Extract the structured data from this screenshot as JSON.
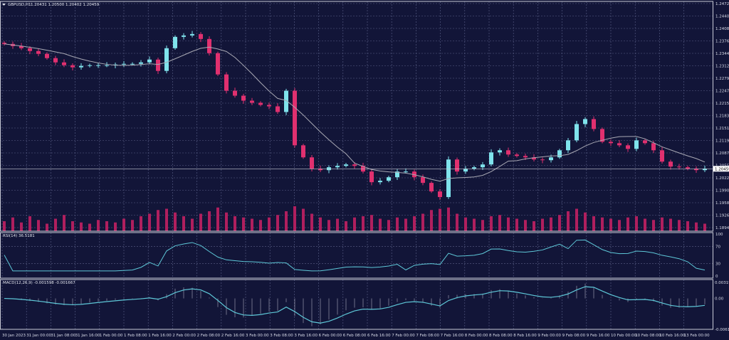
{
  "header": {
    "symbol": "GBPUSD,H1",
    "ohlc": "1.20431 1.20500 1.20402 1.20459"
  },
  "colors": {
    "background": "#121538",
    "grid": "#5b6088",
    "bull": "#7fe3ec",
    "bear": "#e0306f",
    "ma": "#a9a9b4",
    "volume": "#b01f5e",
    "indicator": "#5ec8d8",
    "panel_border": "#c8cad6"
  },
  "chart_data": [
    {
      "type": "candlestick",
      "title": "GBPUSD,H1",
      "price_axis_labels": [
        "1.24725",
        "1.24405",
        "1.24080",
        "1.23760",
        "1.23440",
        "1.23120",
        "1.22795",
        "1.22475",
        "1.22155",
        "1.21835",
        "1.21510",
        "1.21190",
        "1.20870",
        "1.20550",
        "1.20225",
        "1.19905",
        "1.19585",
        "1.19265",
        "1.18940"
      ],
      "ylim": [
        1.1894,
        1.24725
      ],
      "current_price": "1.20459",
      "x_tick_labels": [
        "30 Jan 2023",
        "31 Jan 00:00",
        "31 Jan 08:00",
        "31 Jan 16:00",
        "1 Feb 00:00",
        "1 Feb 08:00",
        "1 Feb 16:00",
        "2 Feb 00:00",
        "2 Feb 08:00",
        "2 Feb 16:00",
        "3 Feb 00:00",
        "3 Feb 08:00",
        "3 Feb 16:00",
        "6 Feb 00:00",
        "6 Feb 08:00",
        "6 Feb 16:00",
        "7 Feb 00:00",
        "7 Feb 08:00",
        "7 Feb 16:00",
        "8 Feb 00:00",
        "8 Feb 08:00",
        "8 Feb 16:00",
        "9 Feb 00:00",
        "9 Feb 08:00",
        "9 Feb 16:00",
        "10 Feb 00:00",
        "10 Feb 08:00",
        "10 Feb 16:00",
        "13 Feb 00:00"
      ],
      "closes": [
        1.23682,
        1.23627,
        1.23572,
        1.23499,
        1.23426,
        1.23316,
        1.23206,
        1.23133,
        1.23078,
        1.23115,
        1.23133,
        1.23133,
        1.23133,
        1.23151,
        1.23169,
        1.23169,
        1.23206,
        1.23279,
        1.22986,
        1.23572,
        1.23865,
        1.23901,
        1.23938,
        1.2381,
        1.23444,
        1.22895,
        1.22474,
        1.22346,
        1.22218,
        1.22163,
        1.22108,
        1.22071,
        1.21925,
        1.22474,
        1.21065,
        1.20754,
        1.20461,
        1.20424,
        1.20498,
        1.20534,
        1.20571,
        1.20534,
        1.20388,
        1.20113,
        1.2015,
        1.20241,
        1.20388,
        1.20388,
        1.20241,
        1.20095,
        1.19875,
        1.19729,
        1.20699,
        1.20388,
        1.20461,
        1.20498,
        1.20571,
        1.20882,
        1.20937,
        1.20827,
        1.2079,
        1.20754,
        1.20699,
        1.20681,
        1.20754,
        1.20937,
        1.21193,
        1.21614,
        1.21742,
        1.21486,
        1.21156,
        1.2112,
        1.21065,
        1.20973,
        1.21193,
        1.2112,
        1.20937,
        1.20644,
        1.20516,
        1.20498,
        1.20461,
        1.20424,
        1.20459
      ],
      "volumes": [
        40,
        55,
        35,
        60,
        45,
        30,
        50,
        65,
        40,
        35,
        30,
        45,
        40,
        35,
        50,
        45,
        60,
        70,
        85,
        90,
        75,
        60,
        50,
        70,
        80,
        95,
        75,
        60,
        55,
        50,
        45,
        55,
        65,
        80,
        100,
        90,
        70,
        55,
        45,
        50,
        40,
        55,
        60,
        65,
        50,
        45,
        55,
        50,
        60,
        70,
        85,
        90,
        95,
        70,
        55,
        50,
        45,
        60,
        65,
        55,
        50,
        45,
        40,
        50,
        55,
        65,
        80,
        90,
        75,
        60,
        55,
        50,
        45,
        55,
        60,
        50,
        45,
        55,
        50,
        45,
        40,
        35,
        30
      ],
      "moving_average": "on"
    },
    {
      "type": "line",
      "title": "RSI(14) 36.5181",
      "axis_labels": [
        "100",
        "70",
        "30",
        "0"
      ],
      "ylim": [
        0,
        100
      ],
      "levels": [
        70,
        30
      ]
    },
    {
      "type": "line+bar",
      "title": "MACD(12,26,9) -0.001598 -0.001667",
      "axis_labels": [
        "0.003198",
        "0.00",
        "-0.006165"
      ],
      "ylim": [
        -0.006165,
        0.003198
      ]
    }
  ]
}
